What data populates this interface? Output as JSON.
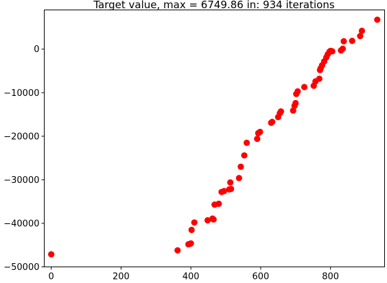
{
  "chart_data": {
    "type": "scatter",
    "title": "Target value, max = 6749.86 in: 934 iterations",
    "xlabel": "",
    "ylabel": "",
    "xlim": [
      -20,
      955
    ],
    "ylim": [
      -50000,
      9000
    ],
    "x_ticks": [
      0,
      200,
      400,
      600,
      800
    ],
    "y_ticks": [
      -50000,
      -40000,
      -30000,
      -20000,
      -10000,
      0
    ],
    "x_tick_labels": [
      "0",
      "200",
      "400",
      "600",
      "800"
    ],
    "y_tick_labels": [
      "−50000",
      "−40000",
      "−30000",
      "−20000",
      "−10000",
      "0"
    ],
    "grid": false,
    "legend": "none",
    "marker_color": "#ff0000",
    "series": [
      {
        "x": [
          0,
          362,
          393,
          398,
          400,
          402,
          410,
          448,
          462,
          465,
          468,
          480,
          488,
          495,
          510,
          513,
          515,
          538,
          543,
          553,
          560,
          590,
          593,
          598,
          630,
          633,
          650,
          655,
          658,
          693,
          697,
          700,
          702,
          706,
          725,
          752,
          757,
          768,
          770,
          772,
          776,
          782,
          788,
          792,
          797,
          800,
          805,
          830,
          835,
          838,
          862,
          885,
          890,
          934
        ],
        "y": [
          -47100,
          -46200,
          -44800,
          -44700,
          -44600,
          -41500,
          -39800,
          -39300,
          -38900,
          -39100,
          -35700,
          -35500,
          -32800,
          -32600,
          -32200,
          -30600,
          -32100,
          -29600,
          -27000,
          -24400,
          -21500,
          -20600,
          -19300,
          -19000,
          -16900,
          -16700,
          -15600,
          -14700,
          -14300,
          -14100,
          -13000,
          -12400,
          -10300,
          -9700,
          -8700,
          -8400,
          -7400,
          -6800,
          -4800,
          -4400,
          -3700,
          -2800,
          -1900,
          -1200,
          -600,
          -400,
          -500,
          -300,
          100,
          1800,
          1900,
          3000,
          4200,
          6749.86
        ]
      }
    ]
  }
}
